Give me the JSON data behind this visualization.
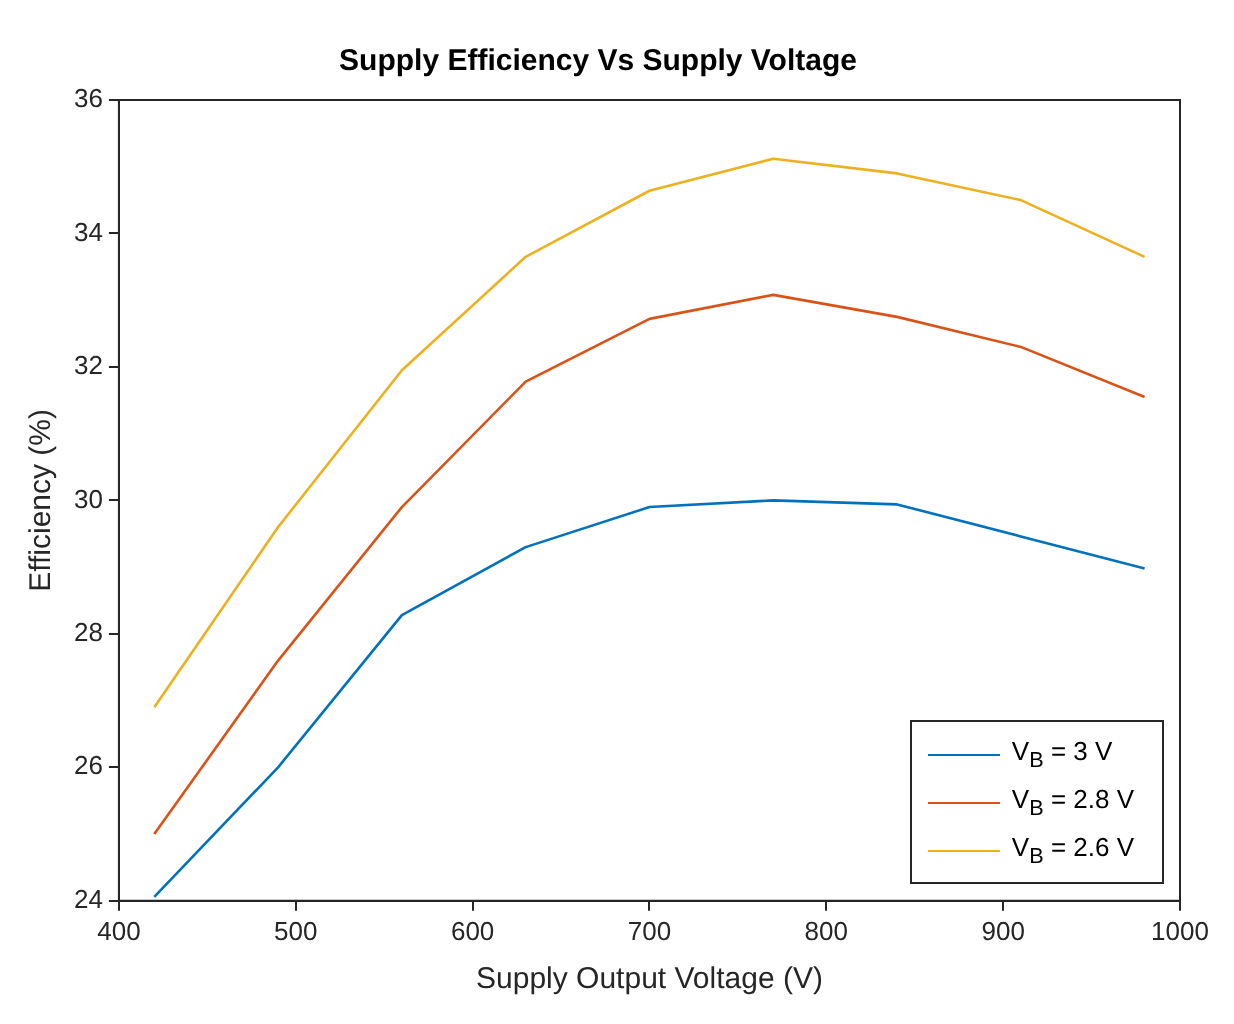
{
  "chart_data": {
    "type": "line",
    "title": "Supply Efficiency Vs Supply Voltage",
    "xlabel": "Supply Output Voltage (V)",
    "ylabel": "Efficiency (%)",
    "x": [
      420,
      490,
      560,
      630,
      700,
      770,
      840,
      910,
      980
    ],
    "series": [
      {
        "name": "V$_{B}$ = 3 V",
        "color": "#0072bd",
        "values": [
          24.06,
          26.0,
          28.28,
          29.3,
          29.9,
          30.0,
          29.94,
          29.46,
          28.98
        ]
      },
      {
        "name": "V$_{B}$ = 2.8 V",
        "color": "#d95319",
        "values": [
          25.0,
          27.6,
          29.9,
          31.78,
          32.72,
          33.08,
          32.75,
          32.3,
          31.55
        ]
      },
      {
        "name": "V$_{B}$ = 2.6 V",
        "color": "#edb120",
        "values": [
          26.9,
          29.6,
          31.95,
          33.65,
          34.64,
          35.12,
          34.9,
          34.5,
          33.65
        ]
      }
    ],
    "xlim": [
      400,
      1000
    ],
    "xticks": [
      400,
      500,
      600,
      700,
      800,
      900,
      1000
    ],
    "ylim": [
      24,
      36
    ],
    "yticks": [
      24,
      26,
      28,
      30,
      32,
      34,
      36
    ],
    "grid": false,
    "legend": "bottom right",
    "marker": "none",
    "line_style": "solid"
  }
}
